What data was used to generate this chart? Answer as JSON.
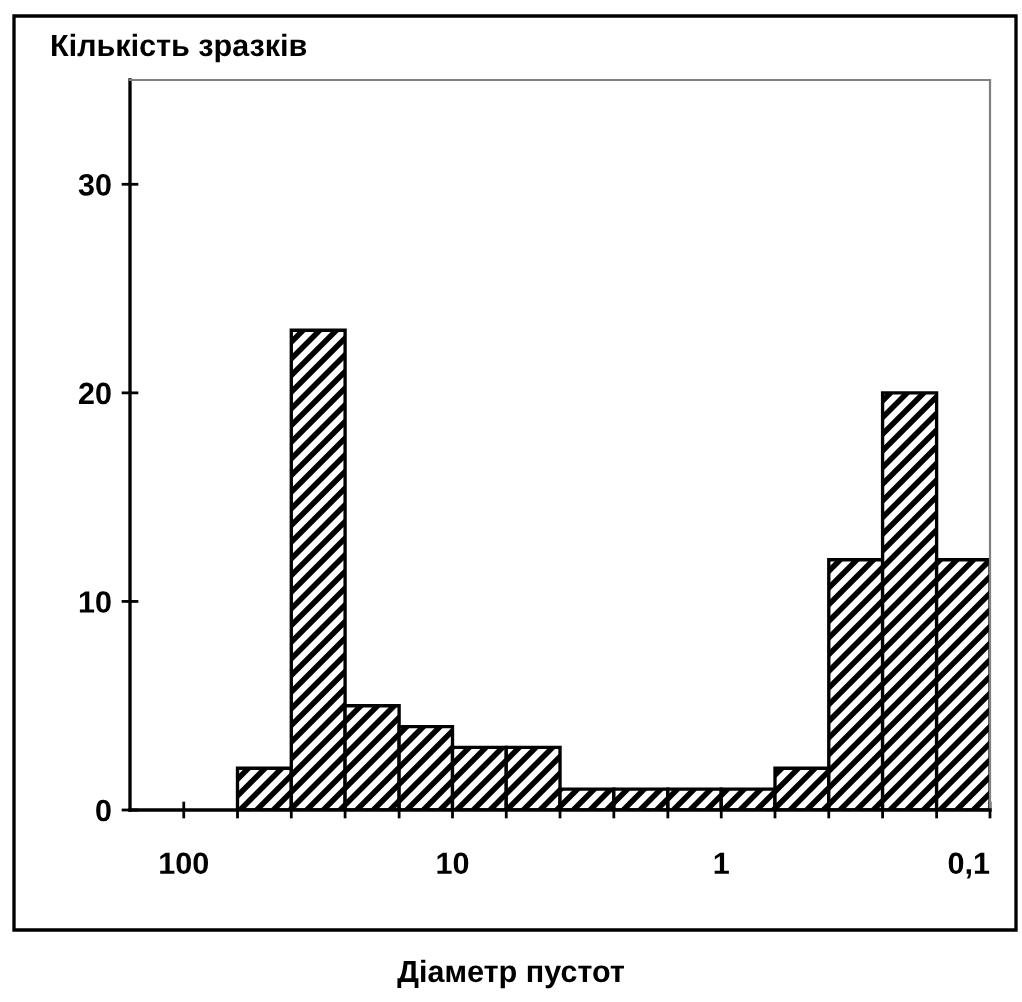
{
  "chart_data": {
    "type": "histogram",
    "ylabel": "Кількість зразків",
    "xlabel": "Діаметр пустот",
    "bins": [
      63.1,
      39.8,
      25.1,
      15.8,
      10,
      6.31,
      3.98,
      2.51,
      1.58,
      1,
      0.631,
      0.398,
      0.251,
      0.158,
      0.1
    ],
    "values": [
      2,
      23,
      5,
      4,
      3,
      3,
      1,
      1,
      1,
      1,
      2,
      12,
      20,
      12
    ],
    "color": "#000000",
    "log": "x",
    "xlim": [
      158.5,
      0.1
    ],
    "xticks": [
      {
        "value": 100,
        "label": "100"
      },
      {
        "value": 63.1,
        "label": null
      },
      {
        "value": 39.8,
        "label": null
      },
      {
        "value": 25.1,
        "label": null
      },
      {
        "value": 15.8,
        "label": null
      },
      {
        "value": 10,
        "label": "10"
      },
      {
        "value": 6.31,
        "label": null
      },
      {
        "value": 3.98,
        "label": null
      },
      {
        "value": 2.51,
        "label": null
      },
      {
        "value": 1.58,
        "label": null
      },
      {
        "value": 1,
        "label": "1"
      },
      {
        "value": 0.631,
        "label": null
      },
      {
        "value": 0.398,
        "label": null
      },
      {
        "value": 0.251,
        "label": null
      },
      {
        "value": 0.158,
        "label": null
      },
      {
        "value": 0.1,
        "label": "0,1"
      }
    ],
    "ylim": [
      0,
      35
    ],
    "yticks": [
      0,
      10,
      20,
      30
    ],
    "grid": false
  }
}
